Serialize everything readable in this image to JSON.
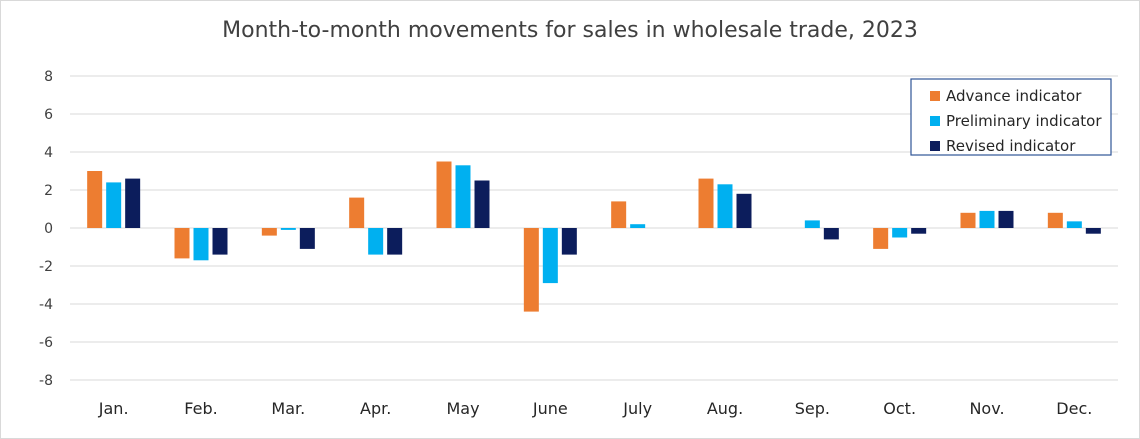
{
  "colors": {
    "advance": "#ED7D31",
    "preliminary": "#00B0F0",
    "revised": "#0C1D5C",
    "grid": "#D9D9D9",
    "legend_border": "#2F5597"
  },
  "chart_data": {
    "type": "bar",
    "title": "Month-to-month movements for sales in wholesale trade, 2023",
    "xlabel": "",
    "ylabel": "",
    "ylim": [
      -8,
      8
    ],
    "yticks": [
      8,
      6,
      4,
      2,
      0,
      -2,
      -4,
      -6,
      -8
    ],
    "yticklabels": [
      "8",
      "6",
      "4",
      "2",
      "0",
      "-2",
      "-4",
      "-6",
      "-8"
    ],
    "grid": true,
    "legend_position": "top-right",
    "categories": [
      "Jan.",
      "Feb.",
      "Mar.",
      "Apr.",
      "May",
      "June",
      "July",
      "Aug.",
      "Sep.",
      "Oct.",
      "Nov.",
      "Dec."
    ],
    "series": [
      {
        "name": "Advance indicator",
        "color_key": "advance",
        "values": [
          3.0,
          -1.6,
          -0.4,
          1.6,
          3.5,
          -4.4,
          1.4,
          2.6,
          0.0,
          -1.1,
          0.8,
          0.8
        ]
      },
      {
        "name": "Preliminary indicator",
        "color_key": "preliminary",
        "values": [
          2.4,
          -1.7,
          -0.1,
          -1.4,
          3.3,
          -2.9,
          0.2,
          2.3,
          0.4,
          -0.5,
          0.9,
          0.35
        ]
      },
      {
        "name": "Revised indicator",
        "color_key": "revised",
        "values": [
          2.6,
          -1.4,
          -1.1,
          -1.4,
          2.5,
          -1.4,
          0.0,
          1.8,
          -0.6,
          -0.3,
          0.9,
          -0.3
        ]
      }
    ]
  }
}
